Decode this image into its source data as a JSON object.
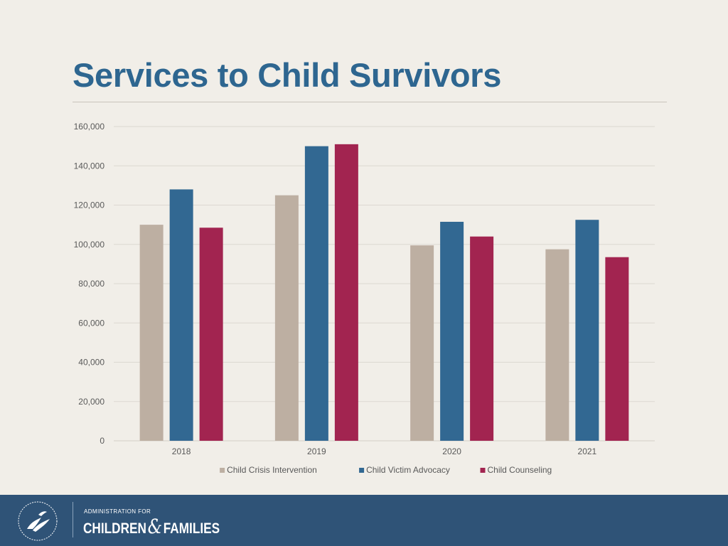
{
  "slide": {
    "title": "Services to Child Survivors"
  },
  "chart_data": {
    "type": "bar",
    "title": "",
    "xlabel": "",
    "ylabel": "",
    "categories": [
      "2018",
      "2019",
      "2020",
      "2021"
    ],
    "series": [
      {
        "name": "Child Crisis Intervention",
        "color": "#bdafa2",
        "values": [
          110000,
          125000,
          99500,
          97500
        ]
      },
      {
        "name": "Child Victim Advocacy",
        "color": "#326892",
        "values": [
          128000,
          150000,
          111500,
          112500
        ]
      },
      {
        "name": "Child Counseling",
        "color": "#a22450",
        "values": [
          108500,
          151000,
          104000,
          93500
        ]
      }
    ],
    "yticks": [
      "0",
      "20,000",
      "40,000",
      "60,000",
      "80,000",
      "100,000",
      "120,000",
      "140,000",
      "160,000"
    ],
    "ylim": [
      0,
      160000
    ],
    "grid": true,
    "legend_position": "bottom"
  },
  "footer": {
    "agency_small": "ADMINISTRATION FOR",
    "agency_word1": "CHILDREN",
    "agency_amp": "&",
    "agency_word2": "FAMILIES"
  }
}
